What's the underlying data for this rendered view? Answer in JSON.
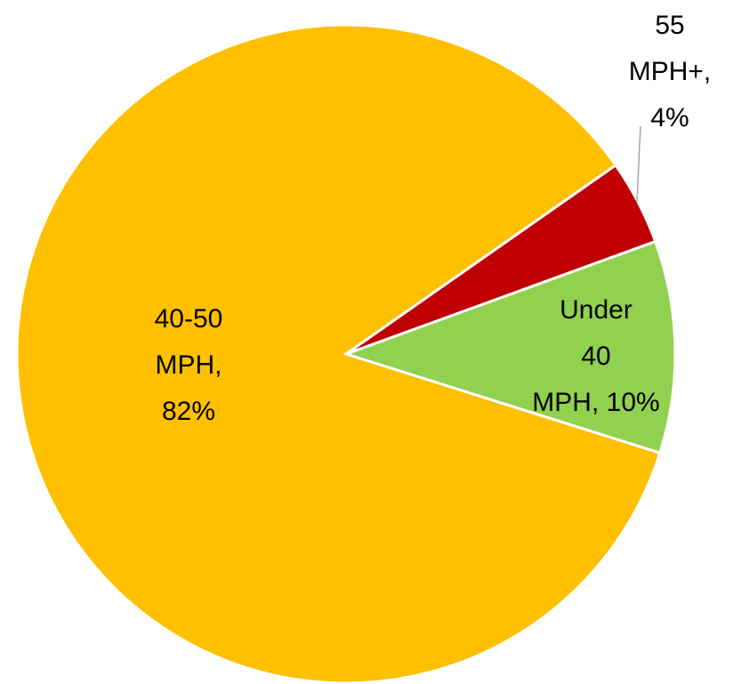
{
  "chart_data": {
    "type": "pie",
    "values": [
      10,
      82,
      4
    ],
    "value_labels": [
      "Under 40 MPH, 10%",
      "40-50 MPH, 82%",
      "55 MPH+, 4%"
    ],
    "colors": [
      "#92d050",
      "#ffc000",
      "#c00000"
    ]
  }
}
